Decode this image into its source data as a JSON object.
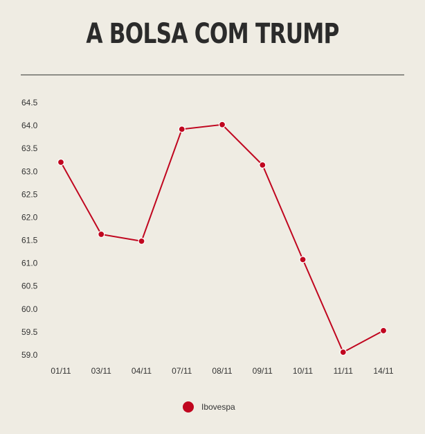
{
  "chart_data": {
    "type": "line",
    "title": "A BOLSA COM TRUMP",
    "xlabel": "",
    "ylabel": "",
    "categories": [
      "01/11",
      "03/11",
      "04/11",
      "07/11",
      "08/11",
      "09/11",
      "10/11",
      "11/11",
      "14/11"
    ],
    "series": [
      {
        "name": "Ibovespa",
        "color": "#c0061f",
        "values": [
          63.2,
          61.63,
          61.48,
          63.92,
          64.02,
          63.14,
          61.08,
          59.06,
          59.53
        ]
      }
    ],
    "yticks": [
      "64.5",
      "64.0",
      "63.5",
      "63.0",
      "62.5",
      "62.0",
      "61.5",
      "61.0",
      "60.5",
      "60.0",
      "59.5",
      "59.0"
    ],
    "ylim": [
      59.0,
      64.5
    ],
    "grid": false,
    "legend": "bottom-center"
  }
}
